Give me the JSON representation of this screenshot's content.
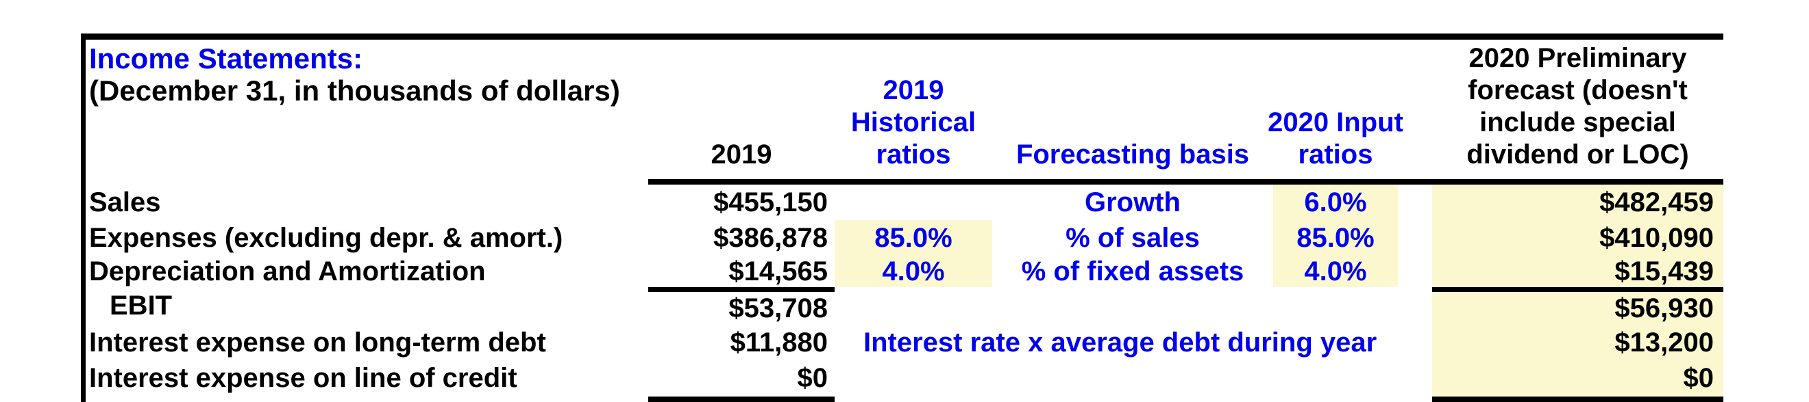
{
  "title": "Income Statements:",
  "subtitle": "(December 31, in thousands of dollars)",
  "header": {
    "col_2019": "2019",
    "hist": [
      "2019",
      "Historical",
      "ratios"
    ],
    "basis": "Forecasting basis",
    "input": [
      "2020 Input",
      "ratios"
    ],
    "forecast": [
      "2020 Preliminary",
      "forecast (doesn't",
      "include special",
      "dividend or LOC)"
    ]
  },
  "rows": [
    {
      "label": "Sales",
      "y2019": "$455,150",
      "hist": "",
      "basis": "Growth",
      "input": "6.0%",
      "forecast": "$482,459"
    },
    {
      "label": "Expenses (excluding depr. & amort.)",
      "y2019": "$386,878",
      "hist": "85.0%",
      "basis": "% of sales",
      "input": "85.0%",
      "forecast": "$410,090"
    },
    {
      "label": "Depreciation and Amortization",
      "y2019": "$14,565",
      "hist": "4.0%",
      "basis": "% of fixed assets",
      "input": "4.0%",
      "forecast": "$15,439"
    },
    {
      "label": "EBIT",
      "y2019": "$53,708",
      "forecast": "$56,930"
    },
    {
      "label": "Interest expense on long-term debt",
      "y2019": "$11,880",
      "note": "Interest rate x average debt during year",
      "forecast": "$13,200"
    },
    {
      "label": "Interest expense on line of credit",
      "y2019": "$0",
      "forecast": "$0"
    }
  ],
  "colors": {
    "accent_blue": "#0000EE",
    "input_highlight_yellow": "#FBF8D0",
    "border_black": "#000000",
    "background": "#FFFFFF"
  }
}
